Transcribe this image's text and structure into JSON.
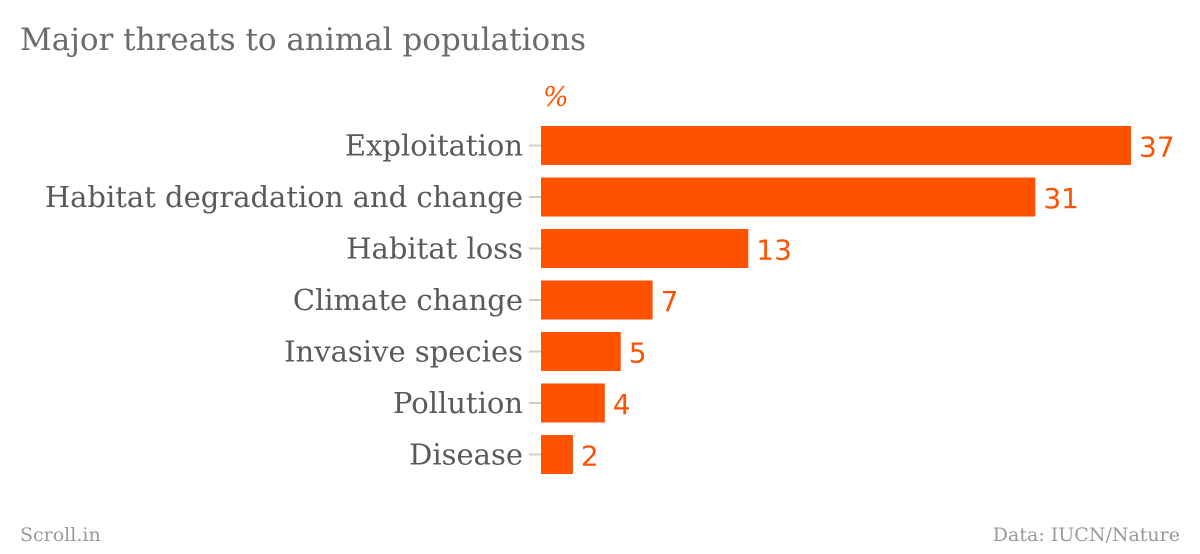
{
  "title": "Major threats to animal populations",
  "footer": {
    "left": "Scroll.in",
    "right": "Data: IUCN/Nature"
  },
  "colors": {
    "bar": "#ff5200",
    "label": "#5a5a5a",
    "tick": "#cccccc"
  },
  "chart_data": {
    "type": "bar",
    "orientation": "horizontal",
    "unit_label": "%",
    "categories": [
      "Exploitation",
      "Habitat degradation and change",
      "Habitat loss",
      "Climate change",
      "Invasive species",
      "Pollution",
      "Disease"
    ],
    "values": [
      37,
      31,
      13,
      7,
      5,
      4,
      2
    ],
    "data_labels": [
      "37",
      "31",
      "13",
      "7",
      "5",
      "4",
      "2"
    ],
    "xlim": [
      0,
      37
    ],
    "grid": false
  }
}
